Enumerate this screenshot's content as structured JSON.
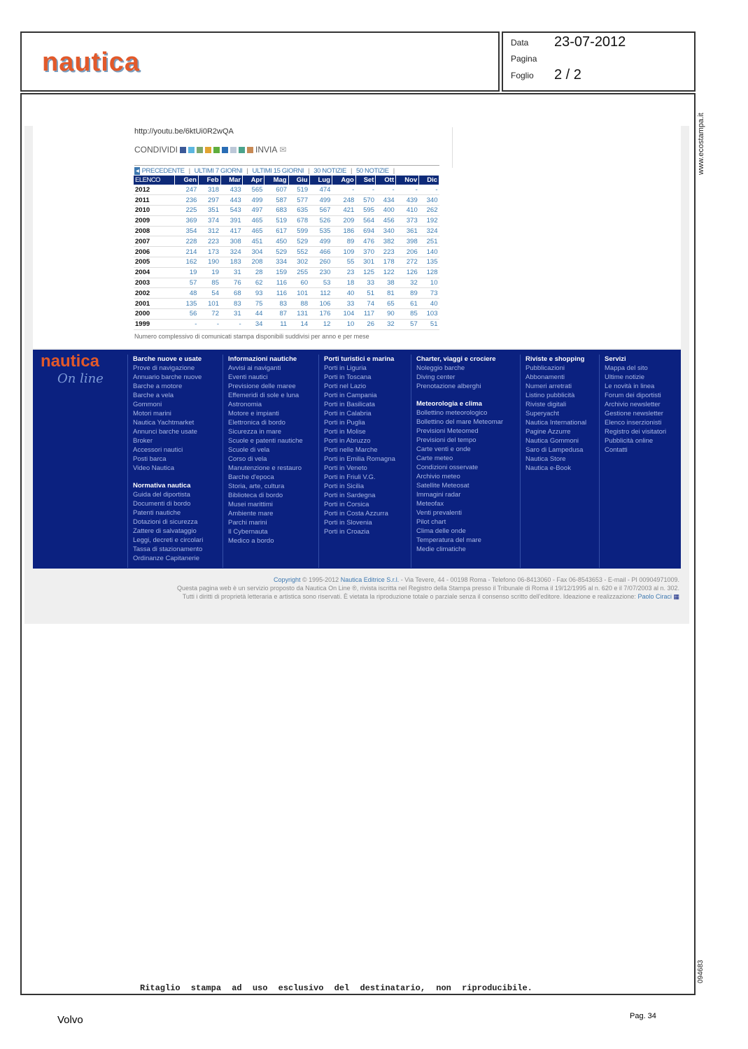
{
  "header": {
    "logo": "nautica",
    "date_label": "Data",
    "date": "23-07-2012",
    "page_label": "Pagina",
    "sheet_label": "Foglio",
    "sheet": "2 / 2"
  },
  "article": {
    "url": "http://youtu.be/6ktUi0R2wQA",
    "share_label": "CONDIVIDI",
    "send_label": "INVIA",
    "nav": [
      "PRECEDENTE",
      "ULTIMI 7 GIORNI",
      "ULTIMI 15 GIORNI",
      "30 NOTIZIE",
      "50 NOTIZIE"
    ],
    "table": {
      "headers": [
        "ELENCO",
        "Gen",
        "Feb",
        "Mar",
        "Apr",
        "Mag",
        "Giu",
        "Lug",
        "Ago",
        "Set",
        "Ott",
        "Nov",
        "Dic"
      ],
      "rows": [
        [
          "2012",
          "247",
          "318",
          "433",
          "565",
          "607",
          "519",
          "474",
          "-",
          "-",
          "-",
          "-",
          "-"
        ],
        [
          "2011",
          "236",
          "297",
          "443",
          "499",
          "587",
          "577",
          "499",
          "248",
          "570",
          "434",
          "439",
          "340"
        ],
        [
          "2010",
          "225",
          "351",
          "543",
          "497",
          "683",
          "635",
          "567",
          "421",
          "595",
          "400",
          "410",
          "262"
        ],
        [
          "2009",
          "369",
          "374",
          "391",
          "465",
          "519",
          "678",
          "526",
          "209",
          "564",
          "456",
          "373",
          "192"
        ],
        [
          "2008",
          "354",
          "312",
          "417",
          "465",
          "617",
          "599",
          "535",
          "186",
          "694",
          "340",
          "361",
          "324"
        ],
        [
          "2007",
          "228",
          "223",
          "308",
          "451",
          "450",
          "529",
          "499",
          "89",
          "476",
          "382",
          "398",
          "251"
        ],
        [
          "2006",
          "214",
          "173",
          "324",
          "304",
          "529",
          "552",
          "466",
          "109",
          "370",
          "223",
          "206",
          "140"
        ],
        [
          "2005",
          "162",
          "190",
          "183",
          "208",
          "334",
          "302",
          "260",
          "55",
          "301",
          "178",
          "272",
          "135"
        ],
        [
          "2004",
          "19",
          "19",
          "31",
          "28",
          "159",
          "255",
          "230",
          "23",
          "125",
          "122",
          "126",
          "128"
        ],
        [
          "2003",
          "57",
          "85",
          "76",
          "62",
          "116",
          "60",
          "53",
          "18",
          "33",
          "38",
          "32",
          "10"
        ],
        [
          "2002",
          "48",
          "54",
          "68",
          "93",
          "116",
          "101",
          "112",
          "40",
          "51",
          "81",
          "89",
          "73"
        ],
        [
          "2001",
          "135",
          "101",
          "83",
          "75",
          "83",
          "88",
          "106",
          "33",
          "74",
          "65",
          "61",
          "40"
        ],
        [
          "2000",
          "56",
          "72",
          "31",
          "44",
          "87",
          "131",
          "176",
          "104",
          "117",
          "90",
          "85",
          "103"
        ],
        [
          "1999",
          "-",
          "-",
          "-",
          "34",
          "11",
          "14",
          "12",
          "10",
          "26",
          "32",
          "57",
          "51"
        ]
      ]
    },
    "note": "Numero complessivo di comunicati stampa disponibili suddivisi per anno e per mese"
  },
  "footer_logo": {
    "line1": "nautica",
    "line2": "On line"
  },
  "footer_columns": [
    [
      {
        "h": "Barche nuove e usate"
      },
      "Prove di navigazione",
      "Annuario barche nuove",
      "Barche a motore",
      "Barche a vela",
      "Gommoni",
      "Motori marini",
      "Nautica Yachtmarket",
      "Annunci barche usate",
      "Broker",
      "Accessori nautici",
      "Posti barca",
      "Video Nautica",
      {
        "gap": true
      },
      {
        "h": "Normativa nautica"
      },
      "Guida del diportista",
      "Documenti di bordo",
      "Patenti nautiche",
      "Dotazioni di sicurezza",
      "Zattere di salvataggio",
      "Leggi, decreti e circolari",
      "Tassa di stazionamento",
      "Ordinanze Capitanerie"
    ],
    [
      {
        "h": "Informazioni nautiche"
      },
      "Avvisi ai naviganti",
      "Eventi nautici",
      "Previsione delle maree",
      "Effemeridi di sole e luna",
      "Astronomia",
      "Motore e impianti",
      "Elettronica di bordo",
      "Sicurezza in mare",
      "Scuole e patenti nautiche",
      "Scuole di vela",
      "Corso di vela",
      "Manutenzione e restauro",
      "Barche d'epoca",
      "Storia, arte, cultura",
      "Biblioteca di bordo",
      "Musei marittimi",
      "Ambiente mare",
      "Parchi marini",
      "Il Cybernauta",
      "Medico a bordo"
    ],
    [
      {
        "h": "Porti turistici e marina"
      },
      "Porti in Liguria",
      "Porti in Toscana",
      "Porti nel Lazio",
      "Porti in Campania",
      "Porti in Basilicata",
      "Porti in Calabria",
      "Porti in Puglia",
      "Porti in Molise",
      "Porti in Abruzzo",
      "Porti nelle Marche",
      "Porti in Emilia Romagna",
      "Porti in Veneto",
      "Porti in Friuli V.G.",
      "Porti in Sicilia",
      "Porti in Sardegna",
      "Porti in Corsica",
      "Porti in Costa Azzurra",
      "Porti in Slovenia",
      "Porti in Croazia"
    ],
    [
      {
        "h": "Charter, viaggi e crociere"
      },
      "Noleggio barche",
      "Diving center",
      "Prenotazione alberghi",
      {
        "gap": true
      },
      {
        "h": "Meteorologia e clima"
      },
      "Bollettino meteorologico",
      "Bollettino del mare Meteomar",
      "Previsioni Meteomed",
      "Previsioni del tempo",
      "Carte venti e onde",
      "Carte meteo",
      "Condizioni osservate",
      "Archivio meteo",
      "Satellite Meteosat",
      "Immagini radar",
      "Meteofax",
      "Venti prevalenti",
      "Pilot chart",
      "Clima delle onde",
      "Temperatura del mare",
      "Medie climatiche"
    ],
    [
      {
        "h": "Riviste e shopping"
      },
      "Pubblicazioni",
      "Abbonamenti",
      "Numeri arretrati",
      "Listino pubblicità",
      "Riviste digitali",
      "Superyacht",
      "Nautica International",
      "Pagine Azzurre",
      "Nautica Gommoni",
      "Saro di Lampedusa",
      "Nautica Store",
      "Nautica e-Book"
    ],
    [
      {
        "h": "Servizi"
      },
      "Mappa del sito",
      "Ultime notizie",
      "Le novità in linea",
      "Forum dei diportisti",
      "Archivio newsletter",
      "Gestione newsletter",
      "Elenco inserzionisti",
      "Registro dei visitatori",
      "Pubblicità online",
      "Contatti"
    ]
  ],
  "copyright": {
    "copyright_link": "Copyright",
    "line1_a": " © 1995-2012 ",
    "company_link": "Nautica Editrice S.r.l.",
    "line1_b": " - Via Tevere, 44 - 00198 Roma - Telefono 06-8413060 - Fax 06-8543653 - E-mail - PI 00904971009.",
    "line2": "Questa pagina web è un servizio proposto da Nautica On Line ®, rivista iscritta nel Registro della Stampa presso il Tribunale di Roma il 19/12/1995 al n. 620 e il 7/07/2003 al n. 302.",
    "line3": "Tutti i diritti di proprietà letteraria e artistica sono riservati. È vietata la riproduzione totale o parziale senza il consenso scritto dell'editore. Ideazione e realizzazione: ",
    "author_link": "Paolo Ciraci"
  },
  "side": {
    "site": "www.ecostampa.it",
    "code": "094683"
  },
  "disclaimer": "Ritaglio stampa ad uso esclusivo del destinatario, non riproducibile.",
  "client": "Volvo",
  "page_number": "Pag. 34"
}
